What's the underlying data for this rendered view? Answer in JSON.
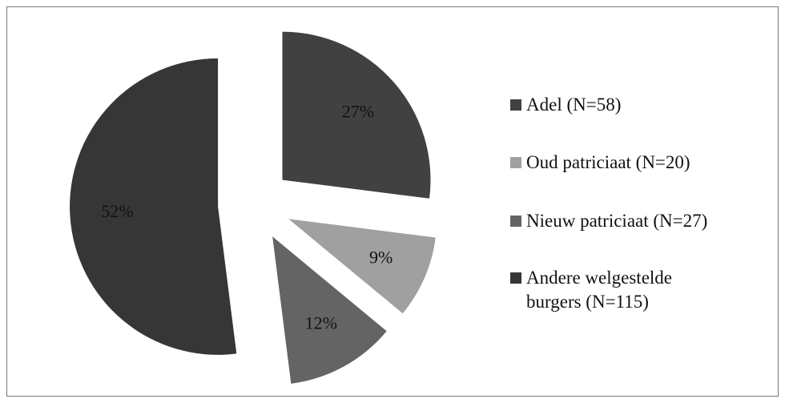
{
  "chart_data": {
    "type": "pie",
    "categories": [
      "Adel (N=58)",
      "Oud patriciaat (N=20)",
      "Nieuw patriciaat (N=27)",
      "Andere welgestelde burgers (N=115)"
    ],
    "values": [
      27,
      9,
      12,
      52
    ],
    "value_labels": [
      "27%",
      "9%",
      "12%",
      "52%"
    ],
    "colors": [
      "#414141",
      "#a0a0a0",
      "#646464",
      "#363636"
    ]
  }
}
